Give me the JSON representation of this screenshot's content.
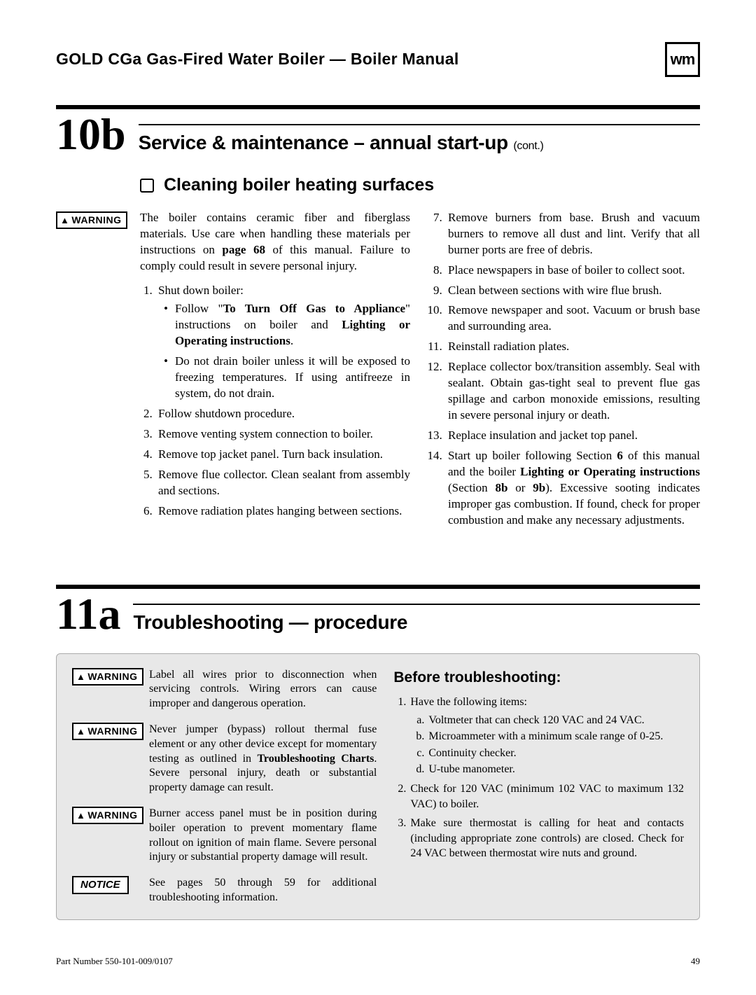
{
  "header": {
    "title": "GOLD CGa Gas-Fired Water Boiler — Boiler Manual",
    "logo": "wm"
  },
  "section10b": {
    "number": "10b",
    "title": "Service & maintenance – annual start-up",
    "cont": "(cont.)",
    "subhead": "Cleaning boiler heating surfaces",
    "warning_label": "WARNING",
    "intro": "The boiler contains ceramic fiber and fiberglass materials. Use care when handling these materials per instructions on <b>page 68</b> of this manual. Failure to comply could result in severe personal injury.",
    "steps": [
      "Shut down boiler:",
      "Follow shutdown procedure.",
      "Remove venting system connection to boiler.",
      "Remove top jacket panel. Turn back insulation.",
      "Remove flue collector. Clean sealant from assembly and sections.",
      "Remove radiation plates hanging between sections.",
      "Remove burners from base. Brush and vacuum burners to remove all dust and lint. Verify that all burner ports are free of debris.",
      "Place newspapers in base of boiler to collect soot.",
      "Clean between sections with wire flue brush.",
      "Remove newspaper and soot. Vacuum or brush base and surrounding area.",
      "Reinstall radiation plates.",
      "Replace collector box/transition assembly. Seal with sealant. Obtain gas-tight seal to prevent flue gas spillage and carbon monoxide emissions, resulting in severe personal injury or death.",
      "Replace insulation and jacket top panel.",
      "Start up boiler following Section <b>6</b> of this manual and the boiler <b>Lighting or Operating instructions</b> (Section <b>8b</b> or <b>9b</b>). Excessive sooting indicates improper gas combustion. If found, check for proper combustion and make any necessary adjustments."
    ],
    "step1_bullets": [
      "Follow \"<b>To Turn Off Gas to Appliance</b>\" instructions on boiler and <b>Lighting or Operating instructions</b>.",
      "Do not drain boiler unless it will be exposed to freezing temperatures. If using antifreeze in system, do not drain."
    ]
  },
  "section11a": {
    "number": "11a",
    "title": "Troubleshooting — procedure",
    "warning_label": "WARNING",
    "notice_label": "NOTICE",
    "warnings": [
      "Label all wires prior to disconnection when servicing controls. Wiring errors can cause improper and dangerous operation.",
      "Never jumper (bypass) rollout thermal fuse element or any other device except for momentary testing as outlined in <b>Troubleshooting Charts</b>. Severe personal injury, death or substantial property damage can result.",
      "Burner access panel must be in position during boiler operation to prevent momentary flame rollout on ignition of main flame. Severe personal injury or substantial property damage will result."
    ],
    "notice": "See pages 50 through 59 for additional troubleshooting information.",
    "before_head": "Before troubleshooting:",
    "before_items": [
      "Have the following items:",
      "Check for 120 VAC (minimum 102 VAC to maximum 132 VAC) to boiler.",
      "Make sure thermostat is calling for heat and contacts (including appropriate zone controls) are closed. Check for 24 VAC between thermostat wire nuts and ground."
    ],
    "before_sub": [
      "Voltmeter that can check 120 VAC and 24 VAC.",
      "Microammeter with a minimum scale range of 0-25.",
      "Continuity checker.",
      "U-tube manometer."
    ]
  },
  "footer": {
    "part": "Part Number 550-101-009/0107",
    "page": "49"
  },
  "colors": {
    "gray_box_bg": "#e8e8e8",
    "text": "#000000",
    "page_bg": "#ffffff"
  }
}
